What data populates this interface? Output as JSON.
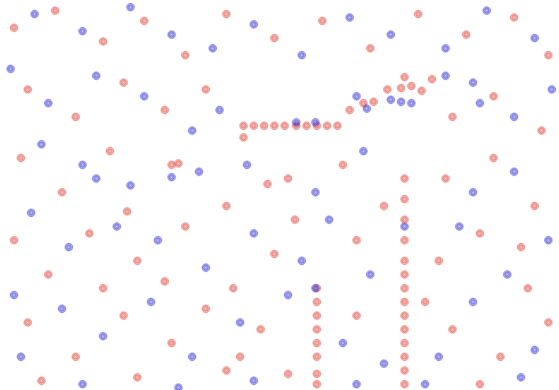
{
  "chart_data": {
    "type": "contour",
    "xlim": [
      0,
      816
    ],
    "ylim": [
      0,
      569
    ],
    "tick_labels": false,
    "series": [
      {
        "color": "#e23a2e",
        "x": [
          355,
          370,
          385,
          400,
          415,
          432,
          447,
          462,
          477,
          492,
          510,
          530,
          545,
          565,
          585,
          600,
          615,
          590,
          630,
          590,
          590,
          590,
          590,
          590,
          590,
          590,
          590,
          590,
          590,
          590,
          590,
          590,
          590,
          462,
          462,
          462,
          462,
          462,
          462,
          462,
          462,
          260,
          250,
          355,
          390,
          185,
          430,
          350,
          330,
          20,
          80,
          150,
          210,
          270,
          330,
          400,
          470,
          540,
          610,
          680,
          750,
          800,
          40,
          110,
          180,
          240,
          300,
          660,
          720,
          790,
          30,
          90,
          160,
          330,
          420,
          500,
          650,
          720,
          780,
          20,
          70,
          130,
          200,
          270,
          340,
          400,
          520,
          640,
          700,
          770,
          40,
          110,
          180,
          250,
          300,
          380,
          520,
          660,
          730,
          800,
          60,
          200,
          420,
          700,
          560,
          240,
          150,
          620,
          760
        ],
        "y": [
          183,
          183,
          183,
          183,
          183,
          183,
          183,
          183,
          183,
          183,
          160,
          150,
          148,
          130,
          128,
          125,
          132,
          112,
          115,
          260,
          290,
          320,
          350,
          380,
          400,
          420,
          440,
          460,
          480,
          500,
          520,
          540,
          560,
          420,
          440,
          460,
          480,
          500,
          520,
          545,
          560,
          238,
          240,
          200,
          268,
          308,
          320,
          520,
          540,
          40,
          15,
          60,
          30,
          80,
          20,
          55,
          30,
          70,
          20,
          50,
          25,
          80,
          130,
          170,
          120,
          160,
          130,
          170,
          140,
          190,
          230,
          280,
          220,
          300,
          260,
          240,
          260,
          230,
          300,
          350,
          400,
          340,
          380,
          330,
          420,
          370,
          350,
          380,
          340,
          420,
          470,
          520,
          460,
          500,
          450,
          480,
          460,
          480,
          520,
          470,
          555,
          550,
          545,
          560,
          300,
          410,
          420,
          440,
          360
        ]
      },
      {
        "color": "#2424d6",
        "x": [
          585,
          600,
          570,
          520,
          535,
          460,
          432,
          590,
          460,
          360,
          250,
          140,
          650,
          700,
          50,
          120,
          190,
          250,
          310,
          370,
          440,
          510,
          570,
          650,
          710,
          780,
          15,
          70,
          140,
          210,
          280,
          320,
          690,
          750,
          805,
          60,
          120,
          190,
          290,
          460,
          530,
          690,
          750,
          45,
          100,
          170,
          230,
          300,
          370,
          480,
          540,
          670,
          740,
          800,
          20,
          90,
          150,
          220,
          280,
          350,
          420,
          500,
          560,
          640,
          690,
          780,
          30,
          120,
          260,
          370,
          520,
          620,
          760,
          440
        ],
        "y": [
          148,
          150,
          145,
          140,
          158,
          178,
          178,
          330,
          420,
          240,
          258,
          260,
          110,
          150,
          20,
          45,
          10,
          50,
          70,
          35,
          80,
          25,
          50,
          70,
          15,
          55,
          100,
          150,
          110,
          140,
          190,
          160,
          120,
          170,
          130,
          210,
          240,
          270,
          250,
          280,
          220,
          280,
          250,
          310,
          360,
          330,
          350,
          390,
          340,
          320,
          400,
          330,
          400,
          350,
          430,
          450,
          490,
          440,
          520,
          470,
          430,
          500,
          530,
          520,
          440,
          510,
          520,
          560,
          565,
          555,
          560,
          560,
          550,
          380
        ]
      }
    ]
  }
}
